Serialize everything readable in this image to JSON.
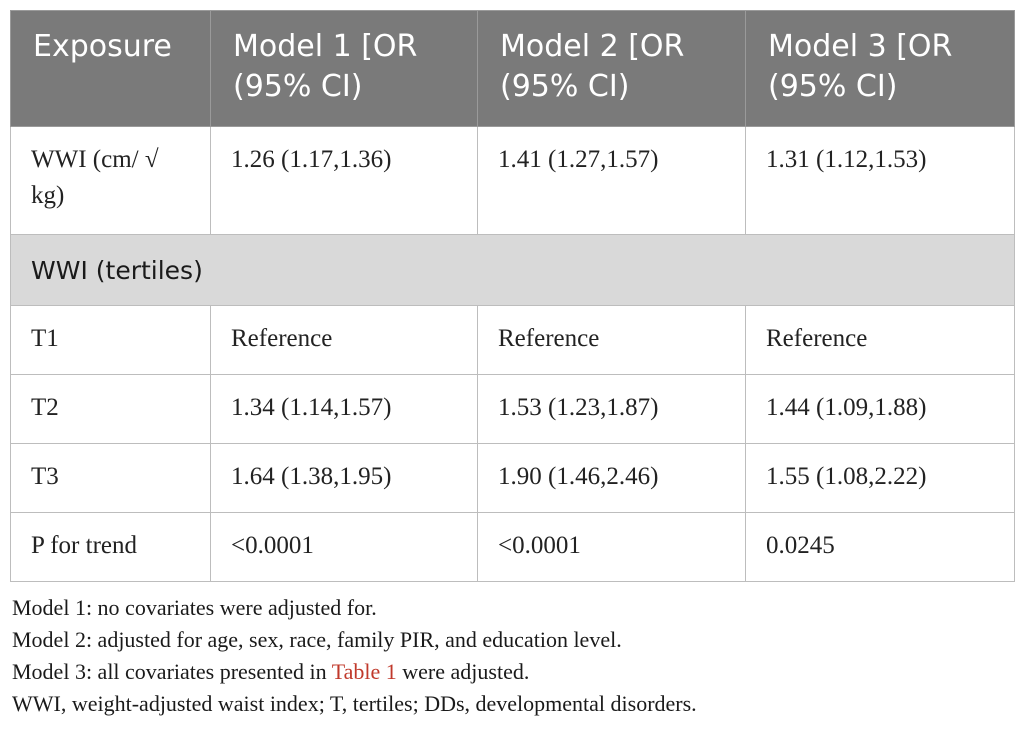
{
  "table": {
    "headers": [
      "Exposure",
      "Model 1 [OR (95% CI)",
      "Model 2 [OR (95% CI)",
      "Model 3 [OR (95% CI)"
    ],
    "rows": [
      {
        "exposure": "WWI (cm/ √ kg)",
        "model1": "1.26 (1.17,1.36)",
        "model2": "1.41 (1.27,1.57)",
        "model3": "1.31 (1.12,1.53)"
      }
    ],
    "section_label": "WWI (tertiles)",
    "tertile_rows": [
      {
        "exposure": "T1",
        "model1": "Reference",
        "model2": "Reference",
        "model3": "Reference"
      },
      {
        "exposure": "T2",
        "model1": "1.34 (1.14,1.57)",
        "model2": "1.53 (1.23,1.87)",
        "model3": "1.44 (1.09,1.88)"
      },
      {
        "exposure": "T3",
        "model1": "1.64 (1.38,1.95)",
        "model2": "1.90 (1.46,2.46)",
        "model3": "1.55 (1.08,2.22)"
      },
      {
        "exposure": "P for trend",
        "model1": "<0.0001",
        "model2": "<0.0001",
        "model3": "0.0245"
      }
    ]
  },
  "notes": {
    "line1": "Model 1: no covariates were adjusted for.",
    "line2": "Model 2: adjusted for age, sex, race, family PIR, and education level.",
    "line3_pre": "Model 3: all covariates presented in ",
    "line3_link": "Table 1",
    "line3_post": " were adjusted.",
    "line4": "WWI, weight-adjusted waist index; T, tertiles; DDs, developmental disorders."
  },
  "colors": {
    "header_bg": "#7a7a7a",
    "section_bg": "#d9d9d9",
    "link": "#c0392b"
  }
}
